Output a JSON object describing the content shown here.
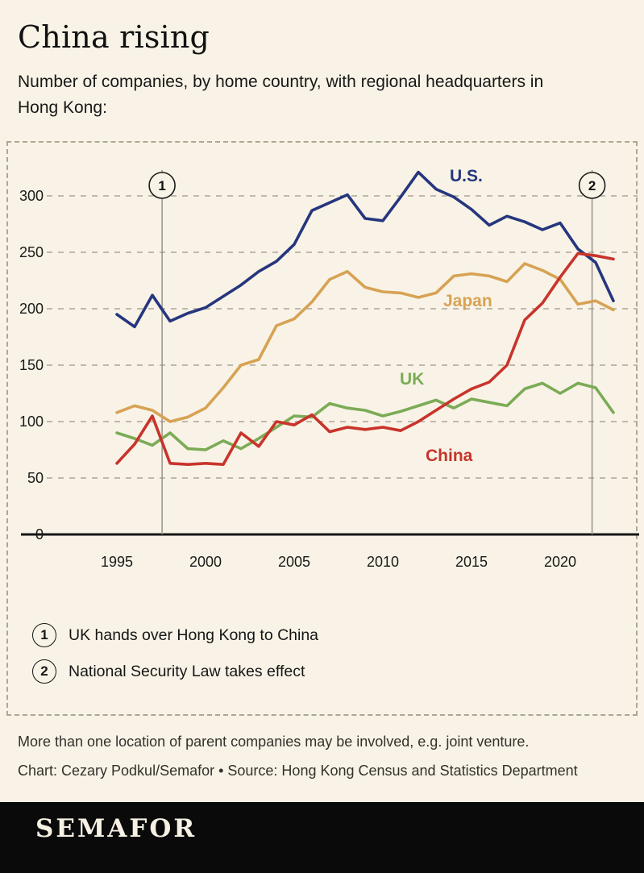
{
  "page": {
    "bg": "#f8f3e6",
    "title": "China rising",
    "subtitle": "Number of companies, by home country, with regional headquarters in Hong Kong:"
  },
  "chart_data": {
    "type": "line",
    "title": "Number of companies, by home country, with regional headquarters in Hong Kong",
    "xlabel": "",
    "ylabel": "",
    "ylim": [
      0,
      330
    ],
    "yticks": [
      0,
      50,
      100,
      150,
      200,
      250,
      300
    ],
    "xticks": [
      1995,
      2000,
      2005,
      2010,
      2015,
      2020
    ],
    "grid": "dashed-horizontal",
    "legend_position": "inline-labels",
    "x": [
      1995,
      1996,
      1997,
      1998,
      1999,
      2000,
      2001,
      2002,
      2003,
      2004,
      2005,
      2006,
      2007,
      2008,
      2009,
      2010,
      2011,
      2012,
      2013,
      2014,
      2015,
      2016,
      2017,
      2018,
      2019,
      2020,
      2021,
      2022,
      2023
    ],
    "series": [
      {
        "name": "U.S.",
        "color": "#26367e",
        "values": [
          195,
          184,
          212,
          189,
          196,
          201,
          211,
          221,
          233,
          242,
          257,
          287,
          294,
          301,
          280,
          278,
          299,
          321,
          306,
          299,
          288,
          274,
          282,
          277,
          270,
          276,
          253,
          241,
          207
        ]
      },
      {
        "name": "Japan",
        "color": "#d7a254",
        "values": [
          108,
          114,
          110,
          100,
          104,
          112,
          130,
          150,
          155,
          185,
          191,
          206,
          226,
          233,
          219,
          215,
          214,
          210,
          214,
          229,
          231,
          229,
          224,
          240,
          234,
          226,
          204,
          207,
          199
        ]
      },
      {
        "name": "UK",
        "color": "#7cab56",
        "values": [
          90,
          85,
          79,
          90,
          76,
          75,
          83,
          76,
          85,
          95,
          105,
          104,
          116,
          112,
          110,
          105,
          109,
          114,
          119,
          112,
          120,
          117,
          114,
          129,
          134,
          125,
          134,
          130,
          108
        ]
      },
      {
        "name": "China",
        "color": "#c8342c",
        "values": [
          63,
          80,
          105,
          63,
          62,
          63,
          62,
          90,
          78,
          100,
          97,
          106,
          91,
          95,
          93,
          95,
          92,
          100,
          110,
          120,
          129,
          135,
          150,
          190,
          205,
          228,
          249,
          247,
          244
        ]
      }
    ],
    "event_markers": [
      {
        "number": "1",
        "year": 1997.55,
        "label": "UK hands over Hong Kong to China"
      },
      {
        "number": "2",
        "year": 2021.8,
        "label": "National Security Law takes effect"
      }
    ]
  },
  "annotations": [
    {
      "number": "1",
      "text": "UK hands over Hong Kong to China"
    },
    {
      "number": "2",
      "text": "National Security Law takes effect"
    }
  ],
  "notes": {
    "line1": "More than one location of parent companies may be involved, e.g. joint venture.",
    "line2": "Chart: Cezary Podkul/Semafor • Source: Hong Kong Census and Statistics Department"
  },
  "footer": {
    "brand": "SEMAFOR"
  }
}
